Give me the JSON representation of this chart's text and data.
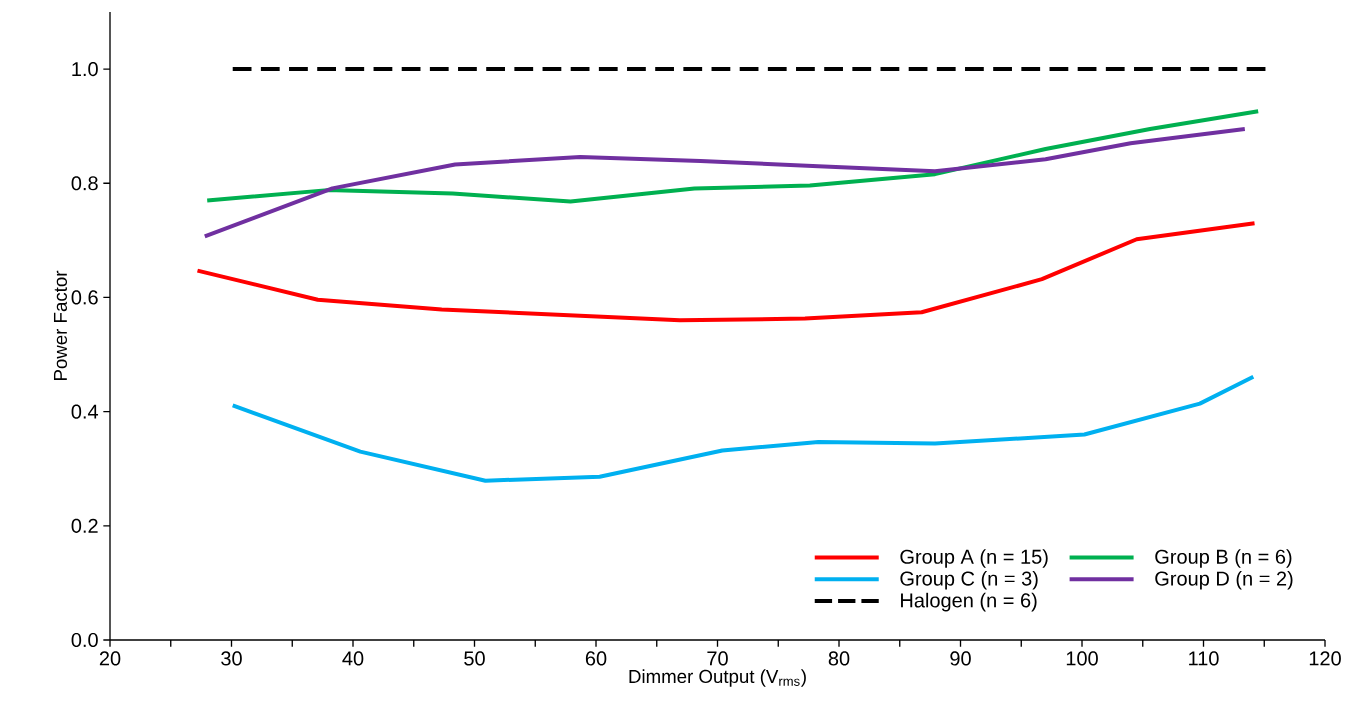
{
  "chart_data": {
    "type": "line",
    "xlabel": "Dimmer Output (V$_{rms}$)",
    "ylabel": "Power Factor",
    "xlim": [
      20,
      120
    ],
    "ylim": [
      0,
      1.1
    ],
    "xticks": [
      20,
      {
        "value": 25,
        "label": null
      },
      30,
      {
        "value": 35,
        "label": null
      },
      40,
      {
        "value": 45,
        "label": null
      },
      50,
      {
        "value": 55,
        "label": null
      },
      60,
      {
        "value": 65,
        "label": null
      },
      70,
      {
        "value": 75,
        "label": null
      },
      80,
      {
        "value": 85,
        "label": null
      },
      90,
      {
        "value": 95,
        "label": null
      },
      100,
      {
        "value": 105,
        "label": null
      },
      110,
      {
        "value": 115,
        "label": null
      },
      120
    ],
    "yticks": [
      {
        "value": 0,
        "label": "0.0"
      },
      0.2,
      0.4,
      0.6,
      0.8,
      {
        "value": 1,
        "label": "1.0"
      }
    ],
    "grid": false,
    "legend": "bottom right",
    "marker": "none",
    "series": [
      {
        "name": "Group A (n = 15)",
        "color": "#ff0000",
        "line_style": "solid",
        "x": [
          27.2,
          37.1,
          47.3,
          66.9,
          77.2,
          86.8,
          96.7,
          104.5,
          114.2
        ],
        "values": [
          0.647,
          0.596,
          0.579,
          0.56,
          0.563,
          0.574,
          0.632,
          0.702,
          0.73
        ]
      },
      {
        "name": "Group B (n = 6)",
        "color": "#00b050",
        "line_style": "solid",
        "x": [
          28.0,
          37.9,
          48.2,
          57.9,
          68.1,
          77.6,
          87.9,
          97.0,
          105.6,
          114.5
        ],
        "values": [
          0.77,
          0.788,
          0.782,
          0.768,
          0.791,
          0.796,
          0.816,
          0.86,
          0.895,
          0.926
        ]
      },
      {
        "name": "Group C (n = 3)",
        "color": "#00b0f0",
        "line_style": "solid",
        "x": [
          30.1,
          40.6,
          50.9,
          60.3,
          70.4,
          78.3,
          87.9,
          100.2,
          109.7,
          114.1
        ],
        "values": [
          0.411,
          0.33,
          0.279,
          0.286,
          0.332,
          0.347,
          0.344,
          0.36,
          0.414,
          0.461
        ]
      },
      {
        "name": "Group D (n = 2)",
        "color": "#7030a0",
        "line_style": "solid",
        "x": [
          27.8,
          38.3,
          48.4,
          58.7,
          68.6,
          78.3,
          87.9,
          97.0,
          104.0,
          113.4
        ],
        "values": [
          0.707,
          0.791,
          0.833,
          0.846,
          0.839,
          0.83,
          0.821,
          0.842,
          0.87,
          0.895
        ]
      },
      {
        "name": "Halogen (n = 6)",
        "color": "#000000",
        "line_style": "dashed",
        "x": [
          30.1,
          115.1
        ],
        "values": [
          1.0,
          1.0
        ]
      }
    ]
  }
}
